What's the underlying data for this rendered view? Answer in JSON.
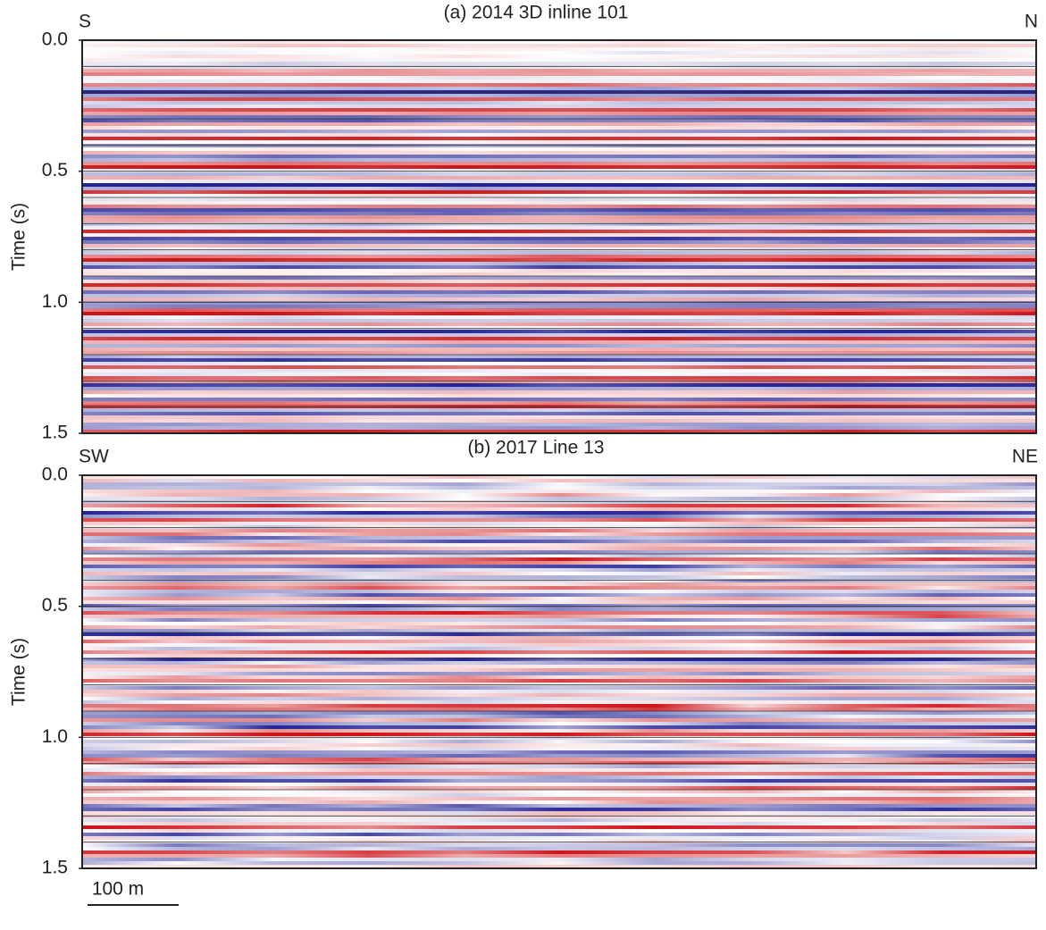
{
  "panels": [
    {
      "title": "(a) 2014 3D inline 101",
      "left_label": "S",
      "right_label": "N",
      "y_label": "Time (s)",
      "ylim": [
        0,
        1.5
      ],
      "yticks": [
        {
          "value": 0,
          "label": "0.0"
        },
        {
          "value": 0.5,
          "label": "0.5"
        },
        {
          "value": 1,
          "label": "1.0"
        },
        {
          "value": 1.5,
          "label": "1.5"
        }
      ],
      "grid_lines": [
        0.1,
        0.2,
        0.3,
        0.4,
        0.5,
        0.6,
        0.7,
        0.8,
        0.9,
        1,
        1.1,
        1.2,
        1.3,
        1.4
      ]
    },
    {
      "title": "(b) 2017 Line 13",
      "left_label": "SW",
      "right_label": "NE",
      "y_label": "Time (s)",
      "ylim": [
        0,
        1.5
      ],
      "yticks": [
        {
          "value": 0,
          "label": "0.0"
        },
        {
          "value": 0.5,
          "label": "0.5"
        },
        {
          "value": 1,
          "label": "1.0"
        },
        {
          "value": 1.5,
          "label": "1.5"
        }
      ],
      "grid_lines": [
        0.1,
        0.2,
        0.3,
        0.4,
        0.5,
        0.6,
        0.7,
        0.8,
        0.9,
        1,
        1.1,
        1.2,
        1.3,
        1.4
      ]
    }
  ],
  "scale_bar": "100 m"
}
